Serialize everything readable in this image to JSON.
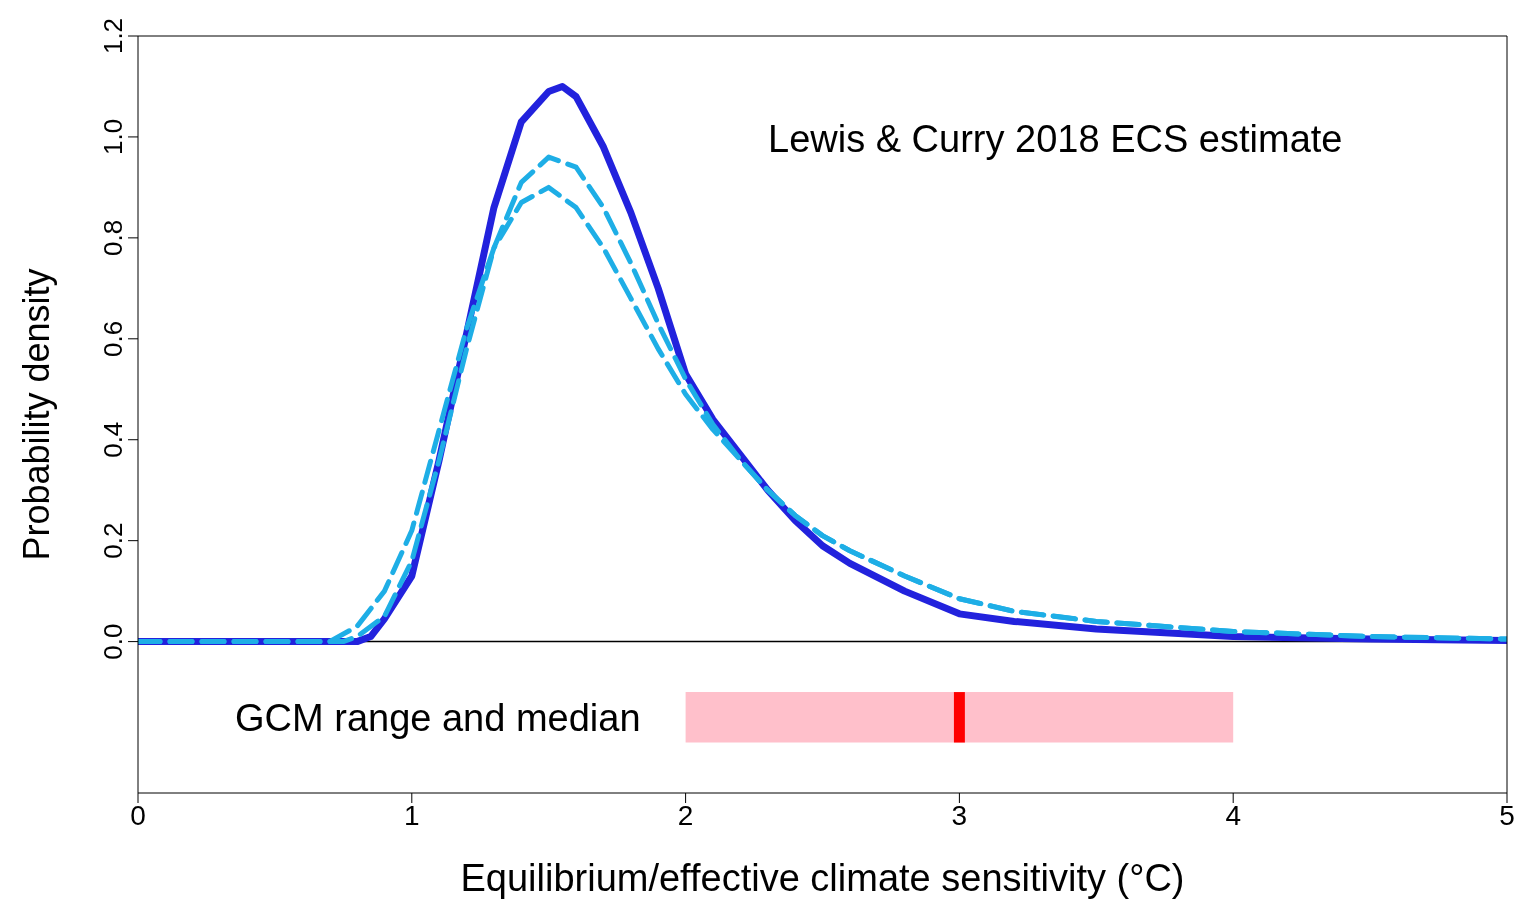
{
  "chart_data": {
    "type": "line",
    "xlabel": "Equilibrium/effective climate sensitivity (°C)",
    "ylabel": "Probability density",
    "annotations": [
      "Lewis & Curry 2018 ECS estimate"
    ],
    "xlim": [
      0,
      5
    ],
    "xticks": [
      0,
      1,
      2,
      3,
      4,
      5
    ],
    "ylim": [
      -0.3,
      1.2
    ],
    "yticks": [
      {
        "value": 0,
        "label": "0.0"
      },
      0.2,
      0.4,
      0.6,
      0.8,
      {
        "value": 1,
        "label": "1.0"
      },
      1.2
    ],
    "series": [
      {
        "color": "#2222dd",
        "line_style": "solid",
        "x": [
          0,
          0.8,
          0.85,
          0.9,
          1.0,
          1.1,
          1.2,
          1.3,
          1.4,
          1.5,
          1.55,
          1.6,
          1.7,
          1.8,
          1.9,
          2.0,
          2.1,
          2.2,
          2.3,
          2.4,
          2.5,
          2.6,
          2.8,
          3.0,
          3.2,
          3.5,
          4.0,
          4.5,
          5.0
        ],
        "values": [
          0,
          0,
          0.01,
          0.045,
          0.13,
          0.36,
          0.61,
          0.86,
          1.03,
          1.09,
          1.1,
          1.08,
          0.98,
          0.85,
          0.7,
          0.53,
          0.44,
          0.37,
          0.3,
          0.24,
          0.19,
          0.155,
          0.1,
          0.055,
          0.04,
          0.025,
          0.01,
          0.005,
          0.002
        ]
      },
      {
        "color": "#1eaee6",
        "line_style": "dashed",
        "x": [
          0,
          0.75,
          0.8,
          0.9,
          1.0,
          1.1,
          1.2,
          1.3,
          1.4,
          1.5,
          1.6,
          1.7,
          1.8,
          1.9,
          2.0,
          2.1,
          2.2,
          2.3,
          2.4,
          2.5,
          2.6,
          2.8,
          3.0,
          3.2,
          3.5,
          4.0,
          4.5,
          5.0
        ],
        "values": [
          0,
          0,
          0.01,
          0.05,
          0.16,
          0.36,
          0.58,
          0.78,
          0.91,
          0.96,
          0.94,
          0.86,
          0.75,
          0.63,
          0.52,
          0.43,
          0.36,
          0.3,
          0.25,
          0.21,
          0.18,
          0.13,
          0.085,
          0.06,
          0.04,
          0.02,
          0.01,
          0.005
        ]
      },
      {
        "color": "#1eaee6",
        "line_style": "dashed",
        "x": [
          0,
          0.7,
          0.8,
          0.9,
          1.0,
          1.1,
          1.2,
          1.3,
          1.4,
          1.5,
          1.6,
          1.7,
          1.8,
          1.9,
          2.0,
          2.1,
          2.2,
          2.3,
          2.4,
          2.5,
          2.6,
          2.8,
          3.0,
          3.2,
          3.5,
          4.0,
          4.5,
          5.0
        ],
        "values": [
          0,
          0,
          0.03,
          0.1,
          0.22,
          0.42,
          0.62,
          0.78,
          0.87,
          0.9,
          0.86,
          0.78,
          0.68,
          0.58,
          0.49,
          0.42,
          0.36,
          0.3,
          0.25,
          0.21,
          0.18,
          0.13,
          0.085,
          0.06,
          0.04,
          0.02,
          0.01,
          0.005
        ]
      }
    ],
    "ref_lines": [
      {
        "axis": "y",
        "value": 0,
        "color": "#000000"
      }
    ],
    "bands": [
      {
        "axis": "x",
        "from": 2,
        "to": 4,
        "label": "GCM range and median",
        "color": "#ffc0cb"
      },
      {
        "axis": "x",
        "from": 2.98,
        "to": 3.02,
        "color": "#ff0000"
      }
    ]
  }
}
